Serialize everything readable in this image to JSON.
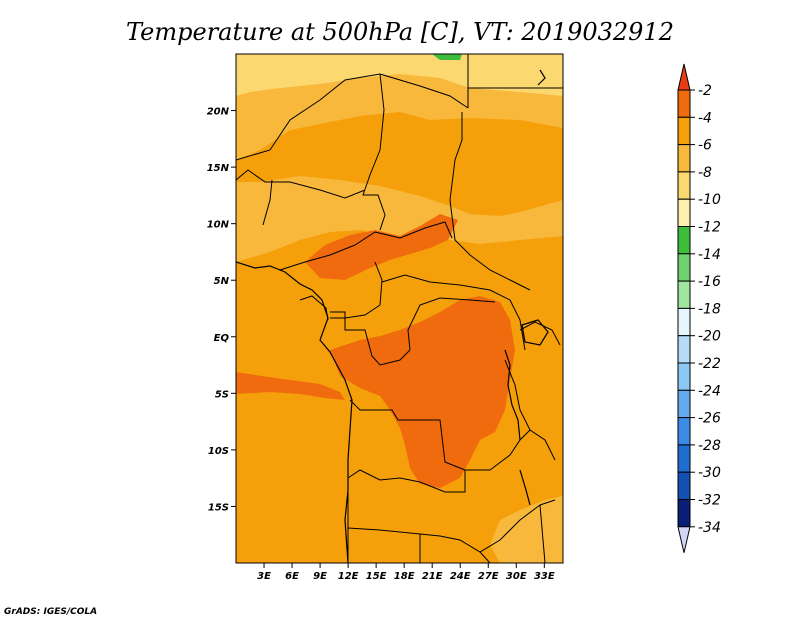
{
  "chart_data": {
    "type": "heatmap",
    "title": "Temperature at 500hPa [C], VT: 2019032912",
    "xlabel": "",
    "ylabel": "",
    "xlim": [
      0,
      35
    ],
    "ylim": [
      -20,
      25
    ],
    "x_ticks": [
      {
        "value": 3,
        "label": "3E"
      },
      {
        "value": 6,
        "label": "6E"
      },
      {
        "value": 9,
        "label": "9E"
      },
      {
        "value": 12,
        "label": "12E"
      },
      {
        "value": 15,
        "label": "15E"
      },
      {
        "value": 18,
        "label": "18E"
      },
      {
        "value": 21,
        "label": "21E"
      },
      {
        "value": 24,
        "label": "24E"
      },
      {
        "value": 27,
        "label": "27E"
      },
      {
        "value": 30,
        "label": "30E"
      },
      {
        "value": 33,
        "label": "33E"
      }
    ],
    "y_ticks": [
      {
        "value": 20,
        "label": "20N"
      },
      {
        "value": 15,
        "label": "15N"
      },
      {
        "value": 10,
        "label": "10N"
      },
      {
        "value": 5,
        "label": "5N"
      },
      {
        "value": 0,
        "label": "EQ"
      },
      {
        "value": -5,
        "label": "5S"
      },
      {
        "value": -10,
        "label": "10S"
      },
      {
        "value": -15,
        "label": "15S"
      }
    ],
    "colorbar": {
      "labels": [
        "-2",
        "-4",
        "-6",
        "-8",
        "-10",
        "-12",
        "-14",
        "-16",
        "-18",
        "-20",
        "-22",
        "-24",
        "-26",
        "-28",
        "-30",
        "-32",
        "-34"
      ],
      "colors": [
        "#e83c14",
        "#f06a0e",
        "#f5a00a",
        "#f8b83c",
        "#fbd870",
        "#fdf0b0",
        "#3cbe3c",
        "#6ed36e",
        "#a0e6a0",
        "#e6f6ff",
        "#b4dcf8",
        "#8cc8f4",
        "#64aaf0",
        "#3c8ce6",
        "#1e6ed2",
        "#1450b4",
        "#0a1e78",
        "#d2d6f6"
      ]
    },
    "fields": [
      {
        "name": "band_-10_-8",
        "color": "#fbd870"
      },
      {
        "name": "band_-8_-6",
        "color": "#f8b83c"
      },
      {
        "name": "band_-6_-4",
        "color": "#f5a00a"
      },
      {
        "name": "band_-4_-2",
        "color": "#f06a0e"
      },
      {
        "name": "band_-12_-10",
        "color": "#fdf0b0"
      },
      {
        "name": "band_-14_-12",
        "color": "#3cbe3c"
      }
    ],
    "credit": "GrADS: IGES/COLA"
  }
}
